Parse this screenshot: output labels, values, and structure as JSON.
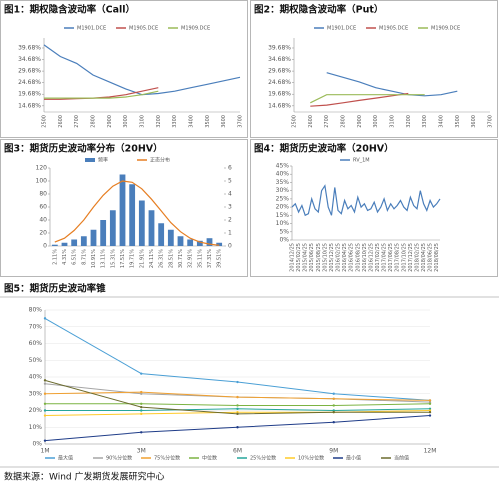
{
  "chart_data": [
    {
      "type": "line",
      "title": "图1：期权隐含波动率（Call）",
      "categories": [
        "2500",
        "2600",
        "2700",
        "2800",
        "2900",
        "3000",
        "3100",
        "3200",
        "3300",
        "3400",
        "3500",
        "3600",
        "3700"
      ],
      "series": [
        {
          "name": "M1901.DCE",
          "color": "#4a7ebb",
          "values": [
            41,
            36,
            33,
            28,
            25,
            22,
            19.5,
            20,
            21,
            22.5,
            24,
            25.5,
            27
          ]
        },
        {
          "name": "M1905.DCE",
          "color": "#c0504d",
          "values": [
            17.5,
            17.5,
            17.8,
            18,
            18.5,
            19.5,
            21,
            22.5,
            null,
            null,
            null,
            null,
            null
          ]
        },
        {
          "name": "M1909.DCE",
          "color": "#9bbb59",
          "values": [
            18,
            18,
            18,
            18,
            18,
            18.5,
            19.5,
            21,
            null,
            null,
            null,
            null,
            null
          ]
        }
      ],
      "ylim": [
        12,
        44
      ],
      "yticks": [
        {
          "value": 14.68,
          "label": "14.68%"
        },
        {
          "value": 19.68,
          "label": "19.68%"
        },
        {
          "value": 24.68,
          "label": "24.68%"
        },
        {
          "value": 29.68,
          "label": "29.68%"
        },
        {
          "value": 34.68,
          "label": "34.68%"
        },
        {
          "value": 39.68,
          "label": "39.68%"
        }
      ],
      "grid": false
    },
    {
      "type": "line",
      "title": "图2：期权隐含波动率（Put）",
      "categories": [
        "2500",
        "2600",
        "2700",
        "2800",
        "2900",
        "3000",
        "3100",
        "3200",
        "3300",
        "3400",
        "3500",
        "3600",
        "3700"
      ],
      "series": [
        {
          "name": "M1901.DCE",
          "color": "#4a7ebb",
          "values": [
            null,
            null,
            29,
            27,
            25,
            22.5,
            21,
            19.5,
            19,
            19.5,
            21,
            null,
            null
          ]
        },
        {
          "name": "M1905.DCE",
          "color": "#c0504d",
          "values": [
            null,
            14.5,
            15,
            16,
            17,
            18,
            19,
            20,
            null,
            null,
            null,
            null,
            null
          ]
        },
        {
          "name": "M1909.DCE",
          "color": "#9bbb59",
          "values": [
            null,
            16,
            19.5,
            19.5,
            19.5,
            19.5,
            19.5,
            19.5,
            19.5,
            null,
            null,
            null,
            null
          ]
        }
      ],
      "ylim": [
        12,
        44
      ],
      "yticks": [
        {
          "value": 14.68,
          "label": "14.68%"
        },
        {
          "value": 19.68,
          "label": "19.68%"
        },
        {
          "value": 24.68,
          "label": "24.68%"
        },
        {
          "value": 29.68,
          "label": "29.68%"
        },
        {
          "value": 34.68,
          "label": "34.68%"
        },
        {
          "value": 39.68,
          "label": "39.68%"
        }
      ],
      "grid": false
    },
    {
      "type": "combo",
      "title": "图3：期货历史波动率分布（20HV）",
      "categories": [
        "2.11%",
        "4.31%",
        "6.51%",
        "8.71%",
        "10.91%",
        "13.11%",
        "15.31%",
        "17.51%",
        "19.71%",
        "21.91%",
        "24.11%",
        "26.31%",
        "28.51%",
        "30.71%",
        "32.91%",
        "35.11%",
        "37.31%",
        "39.51%"
      ],
      "series": [
        {
          "name": "频率",
          "color": "#4a7ebb",
          "values": [
            2,
            5,
            10,
            15,
            25,
            40,
            55,
            110,
            95,
            70,
            55,
            35,
            25,
            15,
            10,
            8,
            12,
            5
          ]
        },
        {
          "name": "正态分布",
          "color": "#e67e22",
          "axis": "y2",
          "values": [
            0.3,
            0.6,
            1.2,
            2,
            3,
            3.9,
            4.6,
            5,
            4.9,
            4.4,
            3.6,
            2.7,
            1.8,
            1.1,
            0.6,
            0.3,
            0.15,
            0.05
          ]
        }
      ],
      "ylim": [
        0,
        120
      ],
      "yticks": [
        0,
        20,
        40,
        60,
        80,
        100,
        120
      ],
      "y2lim": [
        0,
        6
      ],
      "y2ticks": [
        0,
        1,
        2,
        3,
        4,
        5,
        6
      ],
      "grid": false
    },
    {
      "type": "line",
      "title": "图4：期货历史波动率（20HV）",
      "categories": [
        "2014/12/25",
        null,
        "2015/02/25",
        null,
        "2015/04/25",
        null,
        "2015/06/25",
        null,
        "2015/08/25",
        null,
        "2015/10/25",
        null,
        "2015/12/25",
        null,
        "2016/02/25",
        null,
        "2016/04/25",
        null,
        "2016/06/25",
        null,
        "2016/08/25",
        null,
        "2016/10/25",
        null,
        "2016/12/25",
        null,
        "2017/02/25",
        null,
        "2017/04/25",
        null,
        "2017/06/25",
        null,
        "2017/08/25",
        null,
        "2017/10/25",
        null,
        "2017/12/25",
        null,
        "2018/02/25",
        null,
        "2018/04/25",
        null,
        "2018/06/25",
        null,
        "2018/08/25",
        null
      ],
      "series": [
        {
          "name": "RV_1M",
          "color": "#4a7ebb",
          "values": [
            20,
            22,
            17,
            21,
            15,
            16,
            25,
            19,
            17,
            30,
            33,
            20,
            15,
            32,
            18,
            16,
            24,
            19,
            21,
            17,
            26,
            20,
            22,
            18,
            19,
            23,
            17,
            20,
            25,
            18,
            22,
            19,
            21,
            24,
            20,
            18,
            26,
            21,
            19,
            30,
            22,
            18,
            24,
            20,
            22,
            25
          ]
        }
      ],
      "ylim": [
        0,
        45
      ],
      "yticks": [
        {
          "value": 0,
          "label": "0%"
        },
        {
          "value": 5,
          "label": "5%"
        },
        {
          "value": 10,
          "label": "10%"
        },
        {
          "value": 15,
          "label": "15%"
        },
        {
          "value": 20,
          "label": "20%"
        },
        {
          "value": 25,
          "label": "25%"
        },
        {
          "value": 30,
          "label": "30%"
        },
        {
          "value": 35,
          "label": "35%"
        },
        {
          "value": 40,
          "label": "40%"
        },
        {
          "value": 45,
          "label": "45%"
        }
      ],
      "grid": false
    },
    {
      "type": "line",
      "title": "图5：期货历史波动率锥",
      "categories": [
        "1M",
        "3M",
        "6M",
        "9M",
        "12M"
      ],
      "series": [
        {
          "name": "最大值",
          "color": "#4a9fd5",
          "values": [
            75,
            42,
            37,
            30,
            26
          ]
        },
        {
          "name": "90%分位数",
          "color": "#a5a5a5",
          "values": [
            36,
            30,
            28,
            27,
            25
          ]
        },
        {
          "name": "75%分位数",
          "color": "#f0a030",
          "values": [
            30,
            31,
            28,
            27,
            26
          ]
        },
        {
          "name": "中位数",
          "color": "#7cb342",
          "values": [
            24,
            24,
            23,
            23,
            24
          ]
        },
        {
          "name": "25%分位数",
          "color": "#26a69a",
          "values": [
            20,
            20,
            21,
            20,
            21
          ]
        },
        {
          "name": "10%分位数",
          "color": "#ffca28",
          "values": [
            17,
            18,
            19,
            19,
            20
          ]
        },
        {
          "name": "最小值",
          "color": "#1f3c88",
          "values": [
            2,
            7,
            10,
            13,
            17
          ]
        },
        {
          "name": "当前值",
          "color": "#6b6b2e",
          "values": [
            38,
            22,
            18,
            19,
            19
          ]
        }
      ],
      "ylim": [
        0,
        80
      ],
      "yticks": [
        {
          "value": 0,
          "label": "0%"
        },
        {
          "value": 10,
          "label": "10%"
        },
        {
          "value": 20,
          "label": "20%"
        },
        {
          "value": 30,
          "label": "30%"
        },
        {
          "value": 40,
          "label": "40%"
        },
        {
          "value": 50,
          "label": "50%"
        },
        {
          "value": 60,
          "label": "60%"
        },
        {
          "value": 70,
          "label": "70%"
        },
        {
          "value": 80,
          "label": "80%"
        }
      ],
      "grid": true
    }
  ],
  "source": "数据来源：Wind 广发期货发展研究中心"
}
